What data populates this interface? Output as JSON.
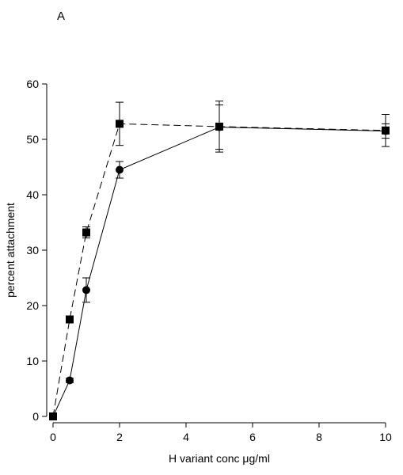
{
  "panel_label": "A",
  "chart_data": {
    "type": "line",
    "xlabel": "H variant conc μg/ml",
    "ylabel": "percent attachment",
    "xlim": [
      0,
      10
    ],
    "ylim": [
      0,
      60
    ],
    "x_ticks": [
      0,
      2,
      4,
      6,
      8,
      10
    ],
    "y_ticks": [
      0,
      10,
      20,
      30,
      40,
      50,
      60
    ],
    "grid": false,
    "legend": "none",
    "series": [
      {
        "marker": "circle",
        "line_style": "solid",
        "color": "#000000",
        "points": [
          {
            "x": 0,
            "y": 0,
            "err": 0
          },
          {
            "x": 0.5,
            "y": 6.5,
            "err": 0.4
          },
          {
            "x": 1,
            "y": 22.8,
            "err": 2.2
          },
          {
            "x": 2,
            "y": 44.5,
            "err": 1.5
          },
          {
            "x": 5,
            "y": 52.2,
            "err": 4.0
          },
          {
            "x": 10,
            "y": 51.5,
            "err": 1.3
          }
        ]
      },
      {
        "marker": "square",
        "line_style": "dashed",
        "color": "#000000",
        "points": [
          {
            "x": 0,
            "y": 0,
            "err": 0
          },
          {
            "x": 0.5,
            "y": 17.5,
            "err": 0.3
          },
          {
            "x": 1,
            "y": 33.2,
            "err": 1.0
          },
          {
            "x": 2,
            "y": 52.8,
            "err": 3.9
          },
          {
            "x": 5,
            "y": 52.3,
            "err": 4.6
          },
          {
            "x": 10,
            "y": 51.6,
            "err": 2.9
          }
        ]
      }
    ]
  }
}
